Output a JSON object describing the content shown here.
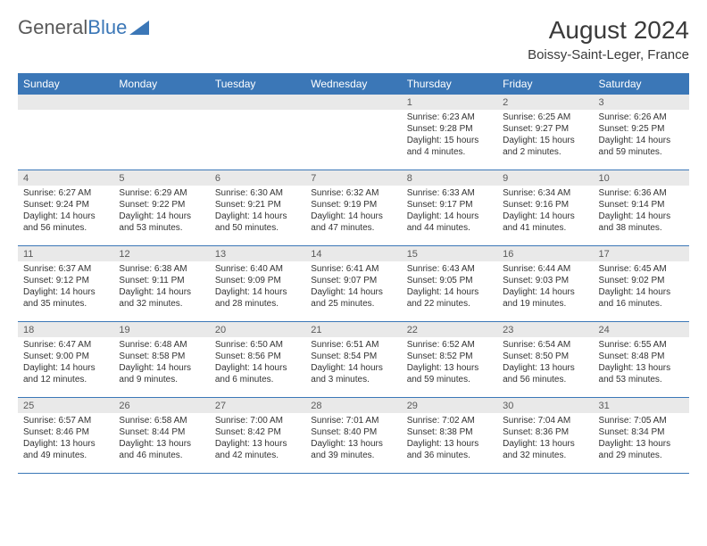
{
  "brand": {
    "part1": "General",
    "part2": "Blue"
  },
  "header": {
    "month_title": "August 2024",
    "location": "Boissy-Saint-Leger, France"
  },
  "colors": {
    "header_bg": "#3b77b7",
    "header_text": "#ffffff",
    "daynum_bg": "#e9e9e9",
    "rule": "#3b77b7",
    "text": "#333333",
    "background": "#ffffff"
  },
  "typography": {
    "body_fontsize": 10,
    "month_fontsize": 28,
    "location_fontsize": 15,
    "dow_fontsize": 12
  },
  "days_of_week": [
    "Sunday",
    "Monday",
    "Tuesday",
    "Wednesday",
    "Thursday",
    "Friday",
    "Saturday"
  ],
  "weeks": [
    [
      {
        "num": "",
        "sunrise": "",
        "sunset": "",
        "daylight": ""
      },
      {
        "num": "",
        "sunrise": "",
        "sunset": "",
        "daylight": ""
      },
      {
        "num": "",
        "sunrise": "",
        "sunset": "",
        "daylight": ""
      },
      {
        "num": "",
        "sunrise": "",
        "sunset": "",
        "daylight": ""
      },
      {
        "num": "1",
        "sunrise": "Sunrise: 6:23 AM",
        "sunset": "Sunset: 9:28 PM",
        "daylight": "Daylight: 15 hours and 4 minutes."
      },
      {
        "num": "2",
        "sunrise": "Sunrise: 6:25 AM",
        "sunset": "Sunset: 9:27 PM",
        "daylight": "Daylight: 15 hours and 2 minutes."
      },
      {
        "num": "3",
        "sunrise": "Sunrise: 6:26 AM",
        "sunset": "Sunset: 9:25 PM",
        "daylight": "Daylight: 14 hours and 59 minutes."
      }
    ],
    [
      {
        "num": "4",
        "sunrise": "Sunrise: 6:27 AM",
        "sunset": "Sunset: 9:24 PM",
        "daylight": "Daylight: 14 hours and 56 minutes."
      },
      {
        "num": "5",
        "sunrise": "Sunrise: 6:29 AM",
        "sunset": "Sunset: 9:22 PM",
        "daylight": "Daylight: 14 hours and 53 minutes."
      },
      {
        "num": "6",
        "sunrise": "Sunrise: 6:30 AM",
        "sunset": "Sunset: 9:21 PM",
        "daylight": "Daylight: 14 hours and 50 minutes."
      },
      {
        "num": "7",
        "sunrise": "Sunrise: 6:32 AM",
        "sunset": "Sunset: 9:19 PM",
        "daylight": "Daylight: 14 hours and 47 minutes."
      },
      {
        "num": "8",
        "sunrise": "Sunrise: 6:33 AM",
        "sunset": "Sunset: 9:17 PM",
        "daylight": "Daylight: 14 hours and 44 minutes."
      },
      {
        "num": "9",
        "sunrise": "Sunrise: 6:34 AM",
        "sunset": "Sunset: 9:16 PM",
        "daylight": "Daylight: 14 hours and 41 minutes."
      },
      {
        "num": "10",
        "sunrise": "Sunrise: 6:36 AM",
        "sunset": "Sunset: 9:14 PM",
        "daylight": "Daylight: 14 hours and 38 minutes."
      }
    ],
    [
      {
        "num": "11",
        "sunrise": "Sunrise: 6:37 AM",
        "sunset": "Sunset: 9:12 PM",
        "daylight": "Daylight: 14 hours and 35 minutes."
      },
      {
        "num": "12",
        "sunrise": "Sunrise: 6:38 AM",
        "sunset": "Sunset: 9:11 PM",
        "daylight": "Daylight: 14 hours and 32 minutes."
      },
      {
        "num": "13",
        "sunrise": "Sunrise: 6:40 AM",
        "sunset": "Sunset: 9:09 PM",
        "daylight": "Daylight: 14 hours and 28 minutes."
      },
      {
        "num": "14",
        "sunrise": "Sunrise: 6:41 AM",
        "sunset": "Sunset: 9:07 PM",
        "daylight": "Daylight: 14 hours and 25 minutes."
      },
      {
        "num": "15",
        "sunrise": "Sunrise: 6:43 AM",
        "sunset": "Sunset: 9:05 PM",
        "daylight": "Daylight: 14 hours and 22 minutes."
      },
      {
        "num": "16",
        "sunrise": "Sunrise: 6:44 AM",
        "sunset": "Sunset: 9:03 PM",
        "daylight": "Daylight: 14 hours and 19 minutes."
      },
      {
        "num": "17",
        "sunrise": "Sunrise: 6:45 AM",
        "sunset": "Sunset: 9:02 PM",
        "daylight": "Daylight: 14 hours and 16 minutes."
      }
    ],
    [
      {
        "num": "18",
        "sunrise": "Sunrise: 6:47 AM",
        "sunset": "Sunset: 9:00 PM",
        "daylight": "Daylight: 14 hours and 12 minutes."
      },
      {
        "num": "19",
        "sunrise": "Sunrise: 6:48 AM",
        "sunset": "Sunset: 8:58 PM",
        "daylight": "Daylight: 14 hours and 9 minutes."
      },
      {
        "num": "20",
        "sunrise": "Sunrise: 6:50 AM",
        "sunset": "Sunset: 8:56 PM",
        "daylight": "Daylight: 14 hours and 6 minutes."
      },
      {
        "num": "21",
        "sunrise": "Sunrise: 6:51 AM",
        "sunset": "Sunset: 8:54 PM",
        "daylight": "Daylight: 14 hours and 3 minutes."
      },
      {
        "num": "22",
        "sunrise": "Sunrise: 6:52 AM",
        "sunset": "Sunset: 8:52 PM",
        "daylight": "Daylight: 13 hours and 59 minutes."
      },
      {
        "num": "23",
        "sunrise": "Sunrise: 6:54 AM",
        "sunset": "Sunset: 8:50 PM",
        "daylight": "Daylight: 13 hours and 56 minutes."
      },
      {
        "num": "24",
        "sunrise": "Sunrise: 6:55 AM",
        "sunset": "Sunset: 8:48 PM",
        "daylight": "Daylight: 13 hours and 53 minutes."
      }
    ],
    [
      {
        "num": "25",
        "sunrise": "Sunrise: 6:57 AM",
        "sunset": "Sunset: 8:46 PM",
        "daylight": "Daylight: 13 hours and 49 minutes."
      },
      {
        "num": "26",
        "sunrise": "Sunrise: 6:58 AM",
        "sunset": "Sunset: 8:44 PM",
        "daylight": "Daylight: 13 hours and 46 minutes."
      },
      {
        "num": "27",
        "sunrise": "Sunrise: 7:00 AM",
        "sunset": "Sunset: 8:42 PM",
        "daylight": "Daylight: 13 hours and 42 minutes."
      },
      {
        "num": "28",
        "sunrise": "Sunrise: 7:01 AM",
        "sunset": "Sunset: 8:40 PM",
        "daylight": "Daylight: 13 hours and 39 minutes."
      },
      {
        "num": "29",
        "sunrise": "Sunrise: 7:02 AM",
        "sunset": "Sunset: 8:38 PM",
        "daylight": "Daylight: 13 hours and 36 minutes."
      },
      {
        "num": "30",
        "sunrise": "Sunrise: 7:04 AM",
        "sunset": "Sunset: 8:36 PM",
        "daylight": "Daylight: 13 hours and 32 minutes."
      },
      {
        "num": "31",
        "sunrise": "Sunrise: 7:05 AM",
        "sunset": "Sunset: 8:34 PM",
        "daylight": "Daylight: 13 hours and 29 minutes."
      }
    ]
  ]
}
